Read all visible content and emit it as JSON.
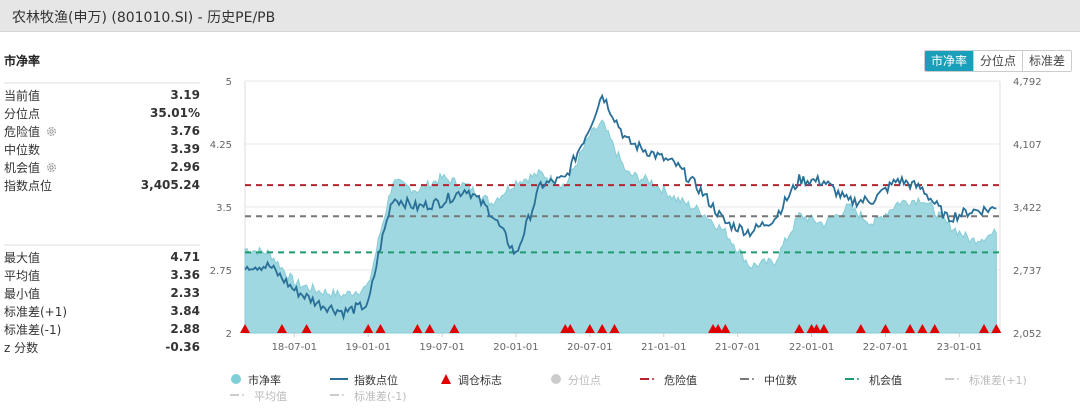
{
  "window": {
    "title": "农林牧渔(申万) (801010.SI) - 历史PE/PB"
  },
  "panel": {
    "title": "市净率",
    "stats_top": [
      {
        "label": "当前值",
        "value": "3.19",
        "gear": false
      },
      {
        "label": "分位点",
        "value": "35.01%",
        "gear": false
      },
      {
        "label": "危险值",
        "value": "3.76",
        "gear": true
      },
      {
        "label": "中位数",
        "value": "3.39",
        "gear": false
      },
      {
        "label": "机会值",
        "value": "2.96",
        "gear": true
      },
      {
        "label": "指数点位",
        "value": "3,405.24",
        "gear": false
      }
    ],
    "stats_bottom": [
      {
        "label": "最大值",
        "value": "4.71"
      },
      {
        "label": "平均值",
        "value": "3.36"
      },
      {
        "label": "最小值",
        "value": "2.33"
      },
      {
        "label": "标准差(+1)",
        "value": "3.84"
      },
      {
        "label": "标准差(-1)",
        "value": "2.88"
      },
      {
        "label": "z 分数",
        "value": "-0.36"
      }
    ]
  },
  "tabs": [
    {
      "label": "市净率",
      "active": true
    },
    {
      "label": "分位点",
      "active": false
    },
    {
      "label": "标准差",
      "active": false
    }
  ],
  "legend": [
    {
      "label": "市净率",
      "symbol": "circle",
      "color": "#7fcfd9",
      "active": true
    },
    {
      "label": "指数点位",
      "symbol": "line",
      "color": "#2a6f97",
      "active": true
    },
    {
      "label": "调仓标志",
      "symbol": "triangle",
      "color": "#e00000",
      "active": true
    },
    {
      "label": "分位点",
      "symbol": "circle",
      "color": "#cccccc",
      "active": false
    },
    {
      "label": "危险值",
      "symbol": "dash",
      "color": "#b5232f",
      "active": true
    },
    {
      "label": "中位数",
      "symbol": "dash",
      "color": "#777777",
      "active": true
    },
    {
      "label": "机会值",
      "symbol": "dash",
      "color": "#1f9a6a",
      "active": true
    },
    {
      "label": "标准差(+1)",
      "symbol": "dash",
      "color": "#cccccc",
      "active": false
    },
    {
      "label": "平均值",
      "symbol": "dash",
      "color": "#cccccc",
      "active": false
    },
    {
      "label": "标准差(-1)",
      "symbol": "dash",
      "color": "#cccccc",
      "active": false
    }
  ],
  "chart_data": {
    "type": "area",
    "title": "农林牧渔(申万) (801010.SI) - 历史PE/PB",
    "xlabel": "",
    "ylabel": "市净率",
    "ylabel_right": "指数点位",
    "x_ticks": [
      "18-07-01",
      "19-01-01",
      "19-07-01",
      "20-01-01",
      "20-07-01",
      "21-01-01",
      "21-07-01",
      "22-01-01",
      "22-07-01",
      "23-01-01"
    ],
    "y_ticks_left": [
      "5",
      "4.25",
      "3.5",
      "2.75",
      "2"
    ],
    "y_ticks_right": [
      "4,792",
      "4,107",
      "3,422",
      "2,737",
      "2,052"
    ],
    "ylim_left": [
      2,
      5
    ],
    "ylim_right": [
      2052,
      4792
    ],
    "grid": true,
    "legend_position": "bottom",
    "reference_lines": [
      {
        "name": "危险值",
        "value": 3.76,
        "color": "#b5232f"
      },
      {
        "name": "中位数",
        "value": 3.39,
        "color": "#777777"
      },
      {
        "name": "机会值",
        "value": 2.96,
        "color": "#1f9a6a"
      }
    ],
    "series": [
      {
        "name": "市净率",
        "type": "area",
        "x": [
          "18-03",
          "18-05",
          "18-07",
          "18-09",
          "18-11",
          "19-01",
          "19-02",
          "19-03",
          "19-05",
          "19-07",
          "19-09",
          "19-11",
          "20-01",
          "20-03",
          "20-05",
          "20-07",
          "20-08",
          "20-10",
          "20-12",
          "21-02",
          "21-04",
          "21-06",
          "21-08",
          "21-10",
          "21-12",
          "22-02",
          "22-04",
          "22-06",
          "22-08",
          "22-10",
          "22-12",
          "23-02",
          "23-04"
        ],
        "values": [
          3.0,
          2.95,
          2.6,
          2.5,
          2.45,
          2.55,
          3.2,
          3.8,
          3.7,
          3.85,
          3.75,
          3.55,
          3.8,
          3.9,
          3.75,
          4.35,
          4.5,
          3.9,
          3.8,
          3.6,
          3.45,
          3.2,
          2.8,
          2.85,
          3.4,
          3.3,
          3.5,
          3.3,
          3.55,
          3.6,
          3.3,
          3.1,
          3.19
        ]
      },
      {
        "name": "指数点位",
        "type": "line",
        "x": [
          "18-03",
          "18-05",
          "18-07",
          "18-09",
          "18-11",
          "19-01",
          "19-02",
          "19-03",
          "19-05",
          "19-07",
          "19-09",
          "19-11",
          "20-01",
          "20-03",
          "20-05",
          "20-07",
          "20-08",
          "20-10",
          "20-12",
          "21-02",
          "21-04",
          "21-06",
          "21-08",
          "21-10",
          "21-12",
          "22-02",
          "22-04",
          "22-06",
          "22-08",
          "22-10",
          "22-12",
          "23-02",
          "23-04"
        ],
        "values": [
          2790,
          2780,
          2520,
          2370,
          2280,
          2360,
          3000,
          3520,
          3420,
          3480,
          3620,
          3360,
          2900,
          3660,
          3730,
          4300,
          4650,
          4140,
          4010,
          3880,
          3600,
          3250,
          3150,
          3300,
          3720,
          3700,
          3480,
          3500,
          3720,
          3620,
          3300,
          3380,
          3405.24
        ]
      }
    ],
    "rebalance_markers_x": [
      "18-03",
      "18-06",
      "18-08",
      "19-01",
      "19-02",
      "19-05",
      "19-06",
      "19-08",
      "20-05",
      "20-05",
      "20-07",
      "20-08",
      "20-09",
      "21-05",
      "21-05",
      "21-06",
      "21-12",
      "22-01",
      "22-01",
      "22-02",
      "22-05",
      "22-07",
      "22-09",
      "22-10",
      "22-11",
      "23-03",
      "23-04"
    ]
  }
}
